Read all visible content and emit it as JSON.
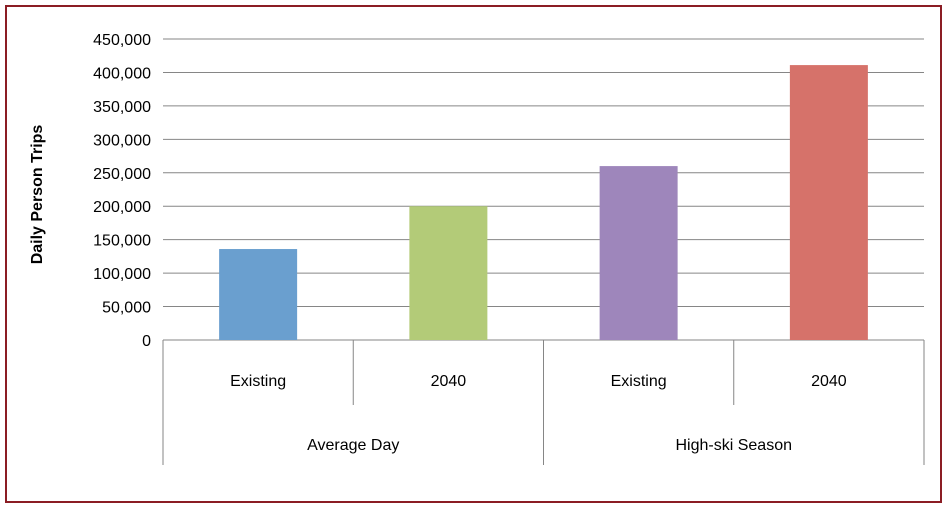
{
  "chart_data": {
    "type": "bar",
    "ylabel": "Daily Person Trips",
    "ylim": [
      0,
      450000
    ],
    "yticks": [
      0,
      50000,
      100000,
      150000,
      200000,
      250000,
      300000,
      350000,
      400000,
      450000
    ],
    "ytick_labels": [
      "0",
      "50,000",
      "100,000",
      "150,000",
      "200,000",
      "250,000",
      "300,000",
      "350,000",
      "400,000",
      "450,000"
    ],
    "grid": true,
    "legend": "none",
    "groups": [
      {
        "name": "Average Day",
        "categories": [
          "Existing",
          "2040"
        ]
      },
      {
        "name": "High-ski Season",
        "categories": [
          "Existing",
          "2040"
        ]
      }
    ],
    "categories": [
      "Existing",
      "2040",
      "Existing",
      "2040"
    ],
    "values": [
      136000,
      200000,
      260000,
      411000
    ],
    "colors": [
      "#6a9fcf",
      "#b3cb78",
      "#9e86bb",
      "#d6726a"
    ]
  }
}
